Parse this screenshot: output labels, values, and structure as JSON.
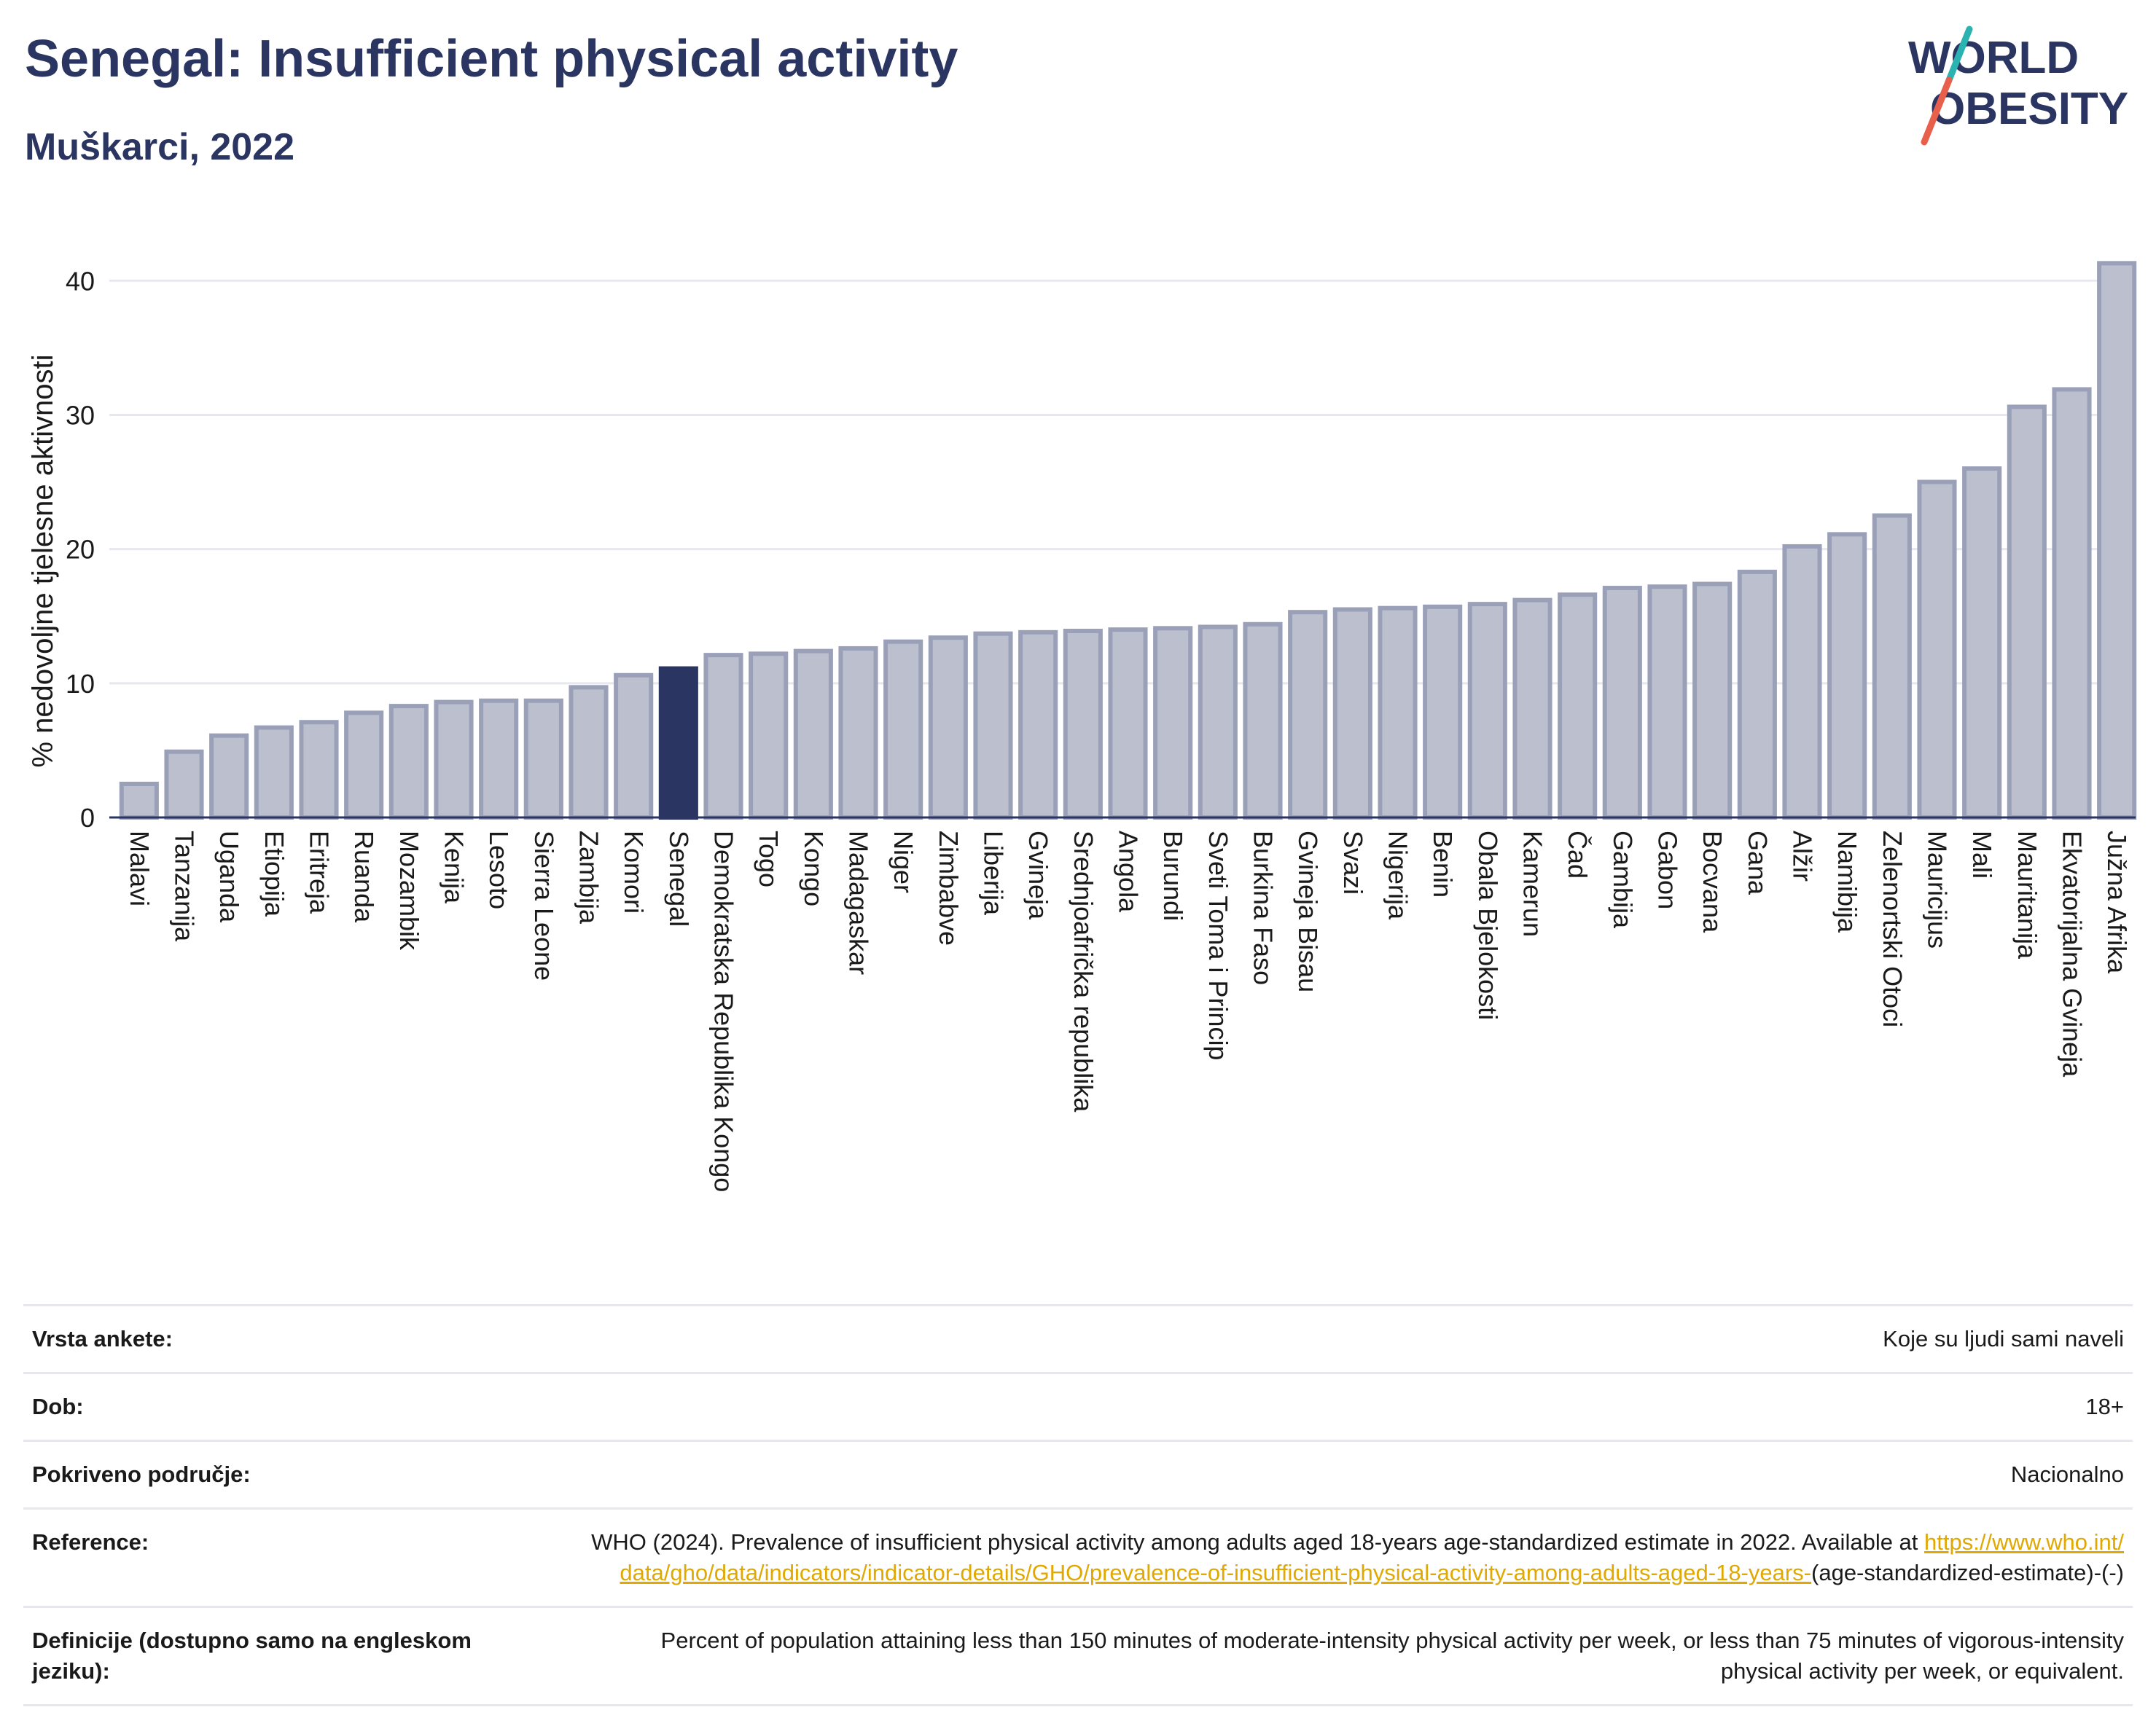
{
  "header": {
    "title": "Senegal: Insufficient physical activity",
    "subtitle": "Muškarci, 2022",
    "logo_text": "WORLD OBESITY"
  },
  "colors": {
    "bar": "#bcc0ce",
    "bar_stroke": "#9aa0b8",
    "highlight": "#2b3561",
    "title": "#2b3561",
    "link": "#e0a800",
    "logo_accent_teal": "#2bb3b1",
    "logo_accent_red": "#e8604c"
  },
  "chart_data": {
    "type": "bar",
    "ylabel": "% nedovoljne tjelesne aktivnosti",
    "ylim": [
      0,
      43
    ],
    "yticks": [
      0,
      10,
      20,
      30,
      40
    ],
    "grid": true,
    "highlight": "Senegal",
    "categories": [
      "Malavi",
      "Tanzanija",
      "Uganda",
      "Etiopija",
      "Eritreja",
      "Ruanda",
      "Mozambik",
      "Kenija",
      "Lesoto",
      "Sierra Leone",
      "Zambija",
      "Komori",
      "Senegal",
      "Demokratska Republika Kongo",
      "Togo",
      "Kongo",
      "Madagaskar",
      "Niger",
      "Zimbabve",
      "Liberija",
      "Gvineja",
      "Srednjoafrička republika",
      "Angola",
      "Burundi",
      "Sveti Toma i Princip",
      "Burkina Faso",
      "Gvineja Bisau",
      "Svazi",
      "Nigerija",
      "Benin",
      "Obala Bjelokosti",
      "Kamerun",
      "Čad",
      "Gambija",
      "Gabon",
      "Bocvana",
      "Gana",
      "Alžir",
      "Namibija",
      "Zelenortski Otoci",
      "Mauricijus",
      "Mali",
      "Mauritanija",
      "Ekvatorijalna Gvineja",
      "Južna Afrika"
    ],
    "values": [
      2.5,
      4.9,
      6.1,
      6.7,
      7.1,
      7.8,
      8.3,
      8.6,
      8.7,
      8.7,
      9.7,
      10.6,
      11.1,
      12.1,
      12.2,
      12.4,
      12.6,
      13.1,
      13.4,
      13.7,
      13.8,
      13.9,
      14.0,
      14.1,
      14.2,
      14.4,
      15.3,
      15.5,
      15.6,
      15.7,
      15.9,
      16.2,
      16.6,
      17.1,
      17.2,
      17.4,
      18.3,
      20.2,
      21.1,
      22.5,
      25.0,
      26.0,
      30.6,
      31.9,
      41.3
    ]
  },
  "info": {
    "survey_type": {
      "label": "Vrsta ankete:",
      "value": "Koje su ljudi sami naveli"
    },
    "age": {
      "label": "Dob:",
      "value": "18+"
    },
    "coverage": {
      "label": "Pokriveno područje:",
      "value": "Nacionalno"
    },
    "reference": {
      "label": "Reference:",
      "text": "WHO (2024). Prevalence of insufficient physical activity among adults aged 18-years age-standardized estimate in 2022. Available at",
      "link": "https://www.who.int/data/gho/data/indicators/indicator-details/GHO/prevalence-of-insufficient-physical-activity-among-adults-aged-18-years-",
      "suffix": "(age-standardized-estimate)-(-)"
    },
    "definitions": {
      "label": "Definicije (dostupno samo na engleskom jeziku):",
      "value": "Percent of population attaining less than 150 minutes of moderate-intensity physical activity per week, or less than 75 minutes of vigorous-intensity physical activity per week, or equivalent."
    }
  }
}
